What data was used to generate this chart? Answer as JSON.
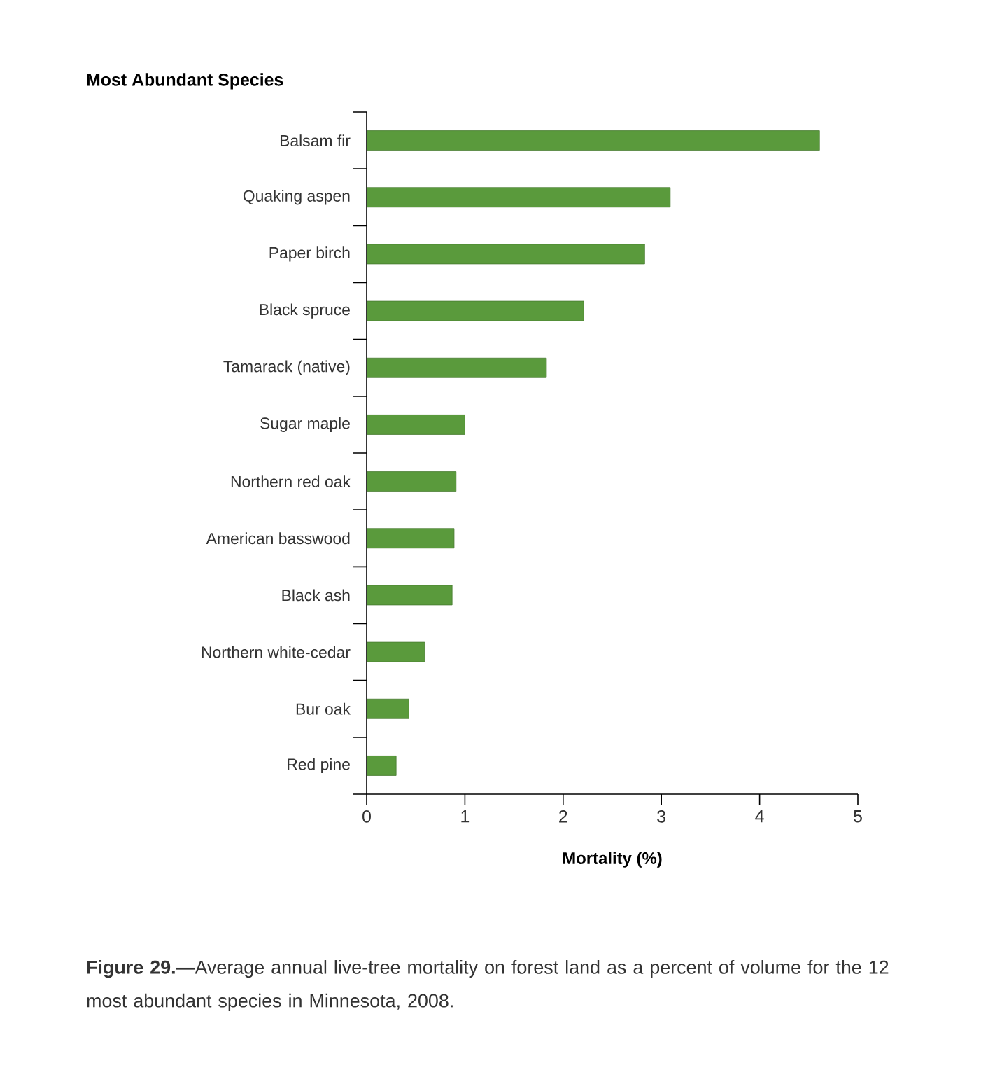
{
  "chart_data": {
    "type": "bar",
    "orientation": "horizontal",
    "title": "Most Abundant Species",
    "xlabel": "Mortality (%)",
    "categories": [
      "Balsam fir",
      "Quaking aspen",
      "Paper birch",
      "Black spruce",
      "Tamarack (native)",
      "Sugar maple",
      "Northern red oak",
      "American basswood",
      "Black ash",
      "Northern white-cedar",
      "Bur oak",
      "Red pine"
    ],
    "values": [
      4.61,
      3.09,
      2.83,
      2.21,
      1.83,
      1.0,
      0.91,
      0.89,
      0.87,
      0.59,
      0.43,
      0.3
    ],
    "color": "#5a9a3c",
    "xlim": [
      0,
      5
    ],
    "xticks": [
      0,
      1,
      2,
      3,
      4,
      5
    ],
    "grid": false,
    "annotations": [
      "**Figure 29.—**Average annual live-tree mortality on forest land as a percent of volume for the 12 most abundant species in Minnesota, 2008."
    ]
  }
}
